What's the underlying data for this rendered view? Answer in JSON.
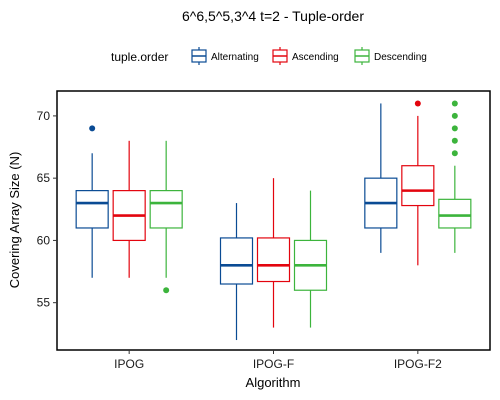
{
  "chart_data": {
    "type": "boxplot",
    "title": "6^6,5^5,3^4 t=2 - Tuple-order",
    "xlabel": "Algorithm",
    "ylabel": "Covering Array Size (N)",
    "ylim": [
      51.2,
      72
    ],
    "yticks": [
      55,
      60,
      65,
      70
    ],
    "grid": false,
    "legend": {
      "title": "tuple.order",
      "position": "top"
    },
    "categories": [
      "IPOG",
      "IPOG-F",
      "IPOG-F2"
    ],
    "series": [
      {
        "name": "Alternating",
        "color": "#0a4b94",
        "boxes": [
          {
            "min": 57,
            "q1": 61,
            "median": 63,
            "q3": 64,
            "max": 67,
            "outliers": [
              69
            ]
          },
          {
            "min": 52,
            "q1": 56.5,
            "median": 58,
            "q3": 60.2,
            "max": 63,
            "outliers": []
          },
          {
            "min": 59,
            "q1": 61,
            "median": 63,
            "q3": 65,
            "max": 71,
            "outliers": []
          }
        ]
      },
      {
        "name": "Ascending",
        "color": "#e3040e",
        "boxes": [
          {
            "min": 57,
            "q1": 60,
            "median": 62,
            "q3": 64,
            "max": 68,
            "outliers": []
          },
          {
            "min": 53,
            "q1": 56.7,
            "median": 58,
            "q3": 60.2,
            "max": 65,
            "outliers": []
          },
          {
            "min": 58,
            "q1": 62.8,
            "median": 64,
            "q3": 66,
            "max": 70,
            "outliers": [
              71
            ]
          }
        ]
      },
      {
        "name": "Descending",
        "color": "#3cb43c",
        "boxes": [
          {
            "min": 57,
            "q1": 61,
            "median": 63,
            "q3": 64,
            "max": 68,
            "outliers": [
              56
            ]
          },
          {
            "min": 53,
            "q1": 56,
            "median": 58,
            "q3": 60,
            "max": 64,
            "outliers": []
          },
          {
            "min": 59,
            "q1": 61,
            "median": 62,
            "q3": 63.3,
            "max": 66,
            "outliers": [
              67,
              68,
              69,
              70,
              71
            ]
          }
        ]
      }
    ]
  }
}
